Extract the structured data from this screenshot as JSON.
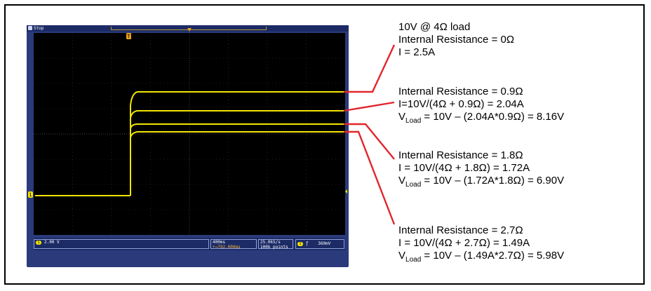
{
  "scope": {
    "status": "Stop",
    "ch1_marker": "1",
    "trigger_marker": "T",
    "ch1_scale": "2.00 V",
    "timebase": "400ms",
    "trigger_pos": "+→792.000ms",
    "sample_rate": "25.0kS/s",
    "record_length": "100k points",
    "trigger_level": "360mV",
    "trigger_symbol": "ƒ",
    "colors": {
      "trace": "#f3e500",
      "bezel": "#2a3a7a",
      "screen": "#000000",
      "callout": "#e1262d"
    }
  },
  "annotations": {
    "block1": {
      "line1": "10V @ 4Ω load",
      "line2": "Internal Resistance = 0Ω",
      "line3": "I = 2.5A"
    },
    "block2": {
      "line1": "Internal Resistance = 0.9Ω",
      "line2": "I=10V/(4Ω + 0.9Ω) = 2.04A",
      "v_prefix": "V",
      "v_sub": "Load",
      "v_rest": " = 10V – (2.04A*0.9Ω) = 8.16V"
    },
    "block3": {
      "line1": "Internal Resistance = 1.8Ω",
      "line2": "I = 10V/(4Ω + 1.8Ω) = 1.72A",
      "v_prefix": "V",
      "v_sub": "Load",
      "v_rest": " = 10V – (1.72A*1.8Ω) = 6.90V"
    },
    "block4": {
      "line1": "Internal Resistance = 2.7Ω",
      "line2": "I = 10V/(4Ω + 2.7Ω) = 1.49A",
      "v_prefix": "V",
      "v_sub": "Load",
      "v_rest": " = 10V – (1.49A*2.7Ω) = 5.98V"
    }
  }
}
